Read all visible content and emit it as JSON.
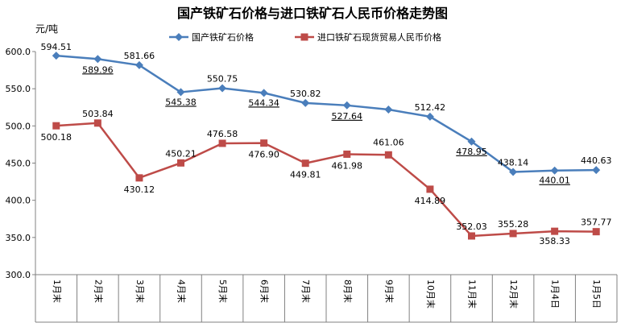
{
  "chart_data": {
    "type": "line",
    "title": "国产铁矿石价格与进口铁矿石人民币价格走势图",
    "ylabel": "元/吨",
    "ylim": [
      300,
      600
    ],
    "yticks": [
      "300.0",
      "350.0",
      "400.0",
      "450.0",
      "500.0",
      "550.0",
      "600.0"
    ],
    "categories": [
      "1月末",
      "2月末",
      "3月末",
      "4月末",
      "5月末",
      "6月末",
      "7月末",
      "8月末",
      "9月末",
      "10月末",
      "11月末",
      "12月末",
      "1月4日",
      "1月5日"
    ],
    "legend_position": "top",
    "grid": false,
    "series": [
      {
        "name": "国产铁矿石价格",
        "color": "#4a7ebb",
        "marker": "diamond",
        "values": [
          594.51,
          589.96,
          581.66,
          545.38,
          550.75,
          544.34,
          530.82,
          527.64,
          522.0,
          512.42,
          478.95,
          438.14,
          440.01,
          440.63
        ],
        "labels": [
          "594.51",
          "589.96",
          "581.66",
          "545.38",
          "550.75",
          "544.34",
          "530.82",
          "527.64",
          "",
          "512.42",
          "478.95",
          "438.14",
          "440.01",
          "440.63"
        ]
      },
      {
        "name": "进口铁矿石现货贸易人民币价格",
        "color": "#be4b48",
        "marker": "square",
        "values": [
          500.18,
          503.84,
          430.12,
          450.21,
          476.58,
          476.9,
          449.81,
          461.98,
          461.06,
          414.89,
          352.03,
          355.28,
          358.33,
          357.77
        ],
        "labels": [
          "500.18",
          "503.84",
          "430.12",
          "450.21",
          "476.58",
          "476.90",
          "449.81",
          "461.98",
          "461.06",
          "414.89",
          "352.03",
          "355.28",
          "358.33",
          "357.77"
        ]
      }
    ]
  }
}
